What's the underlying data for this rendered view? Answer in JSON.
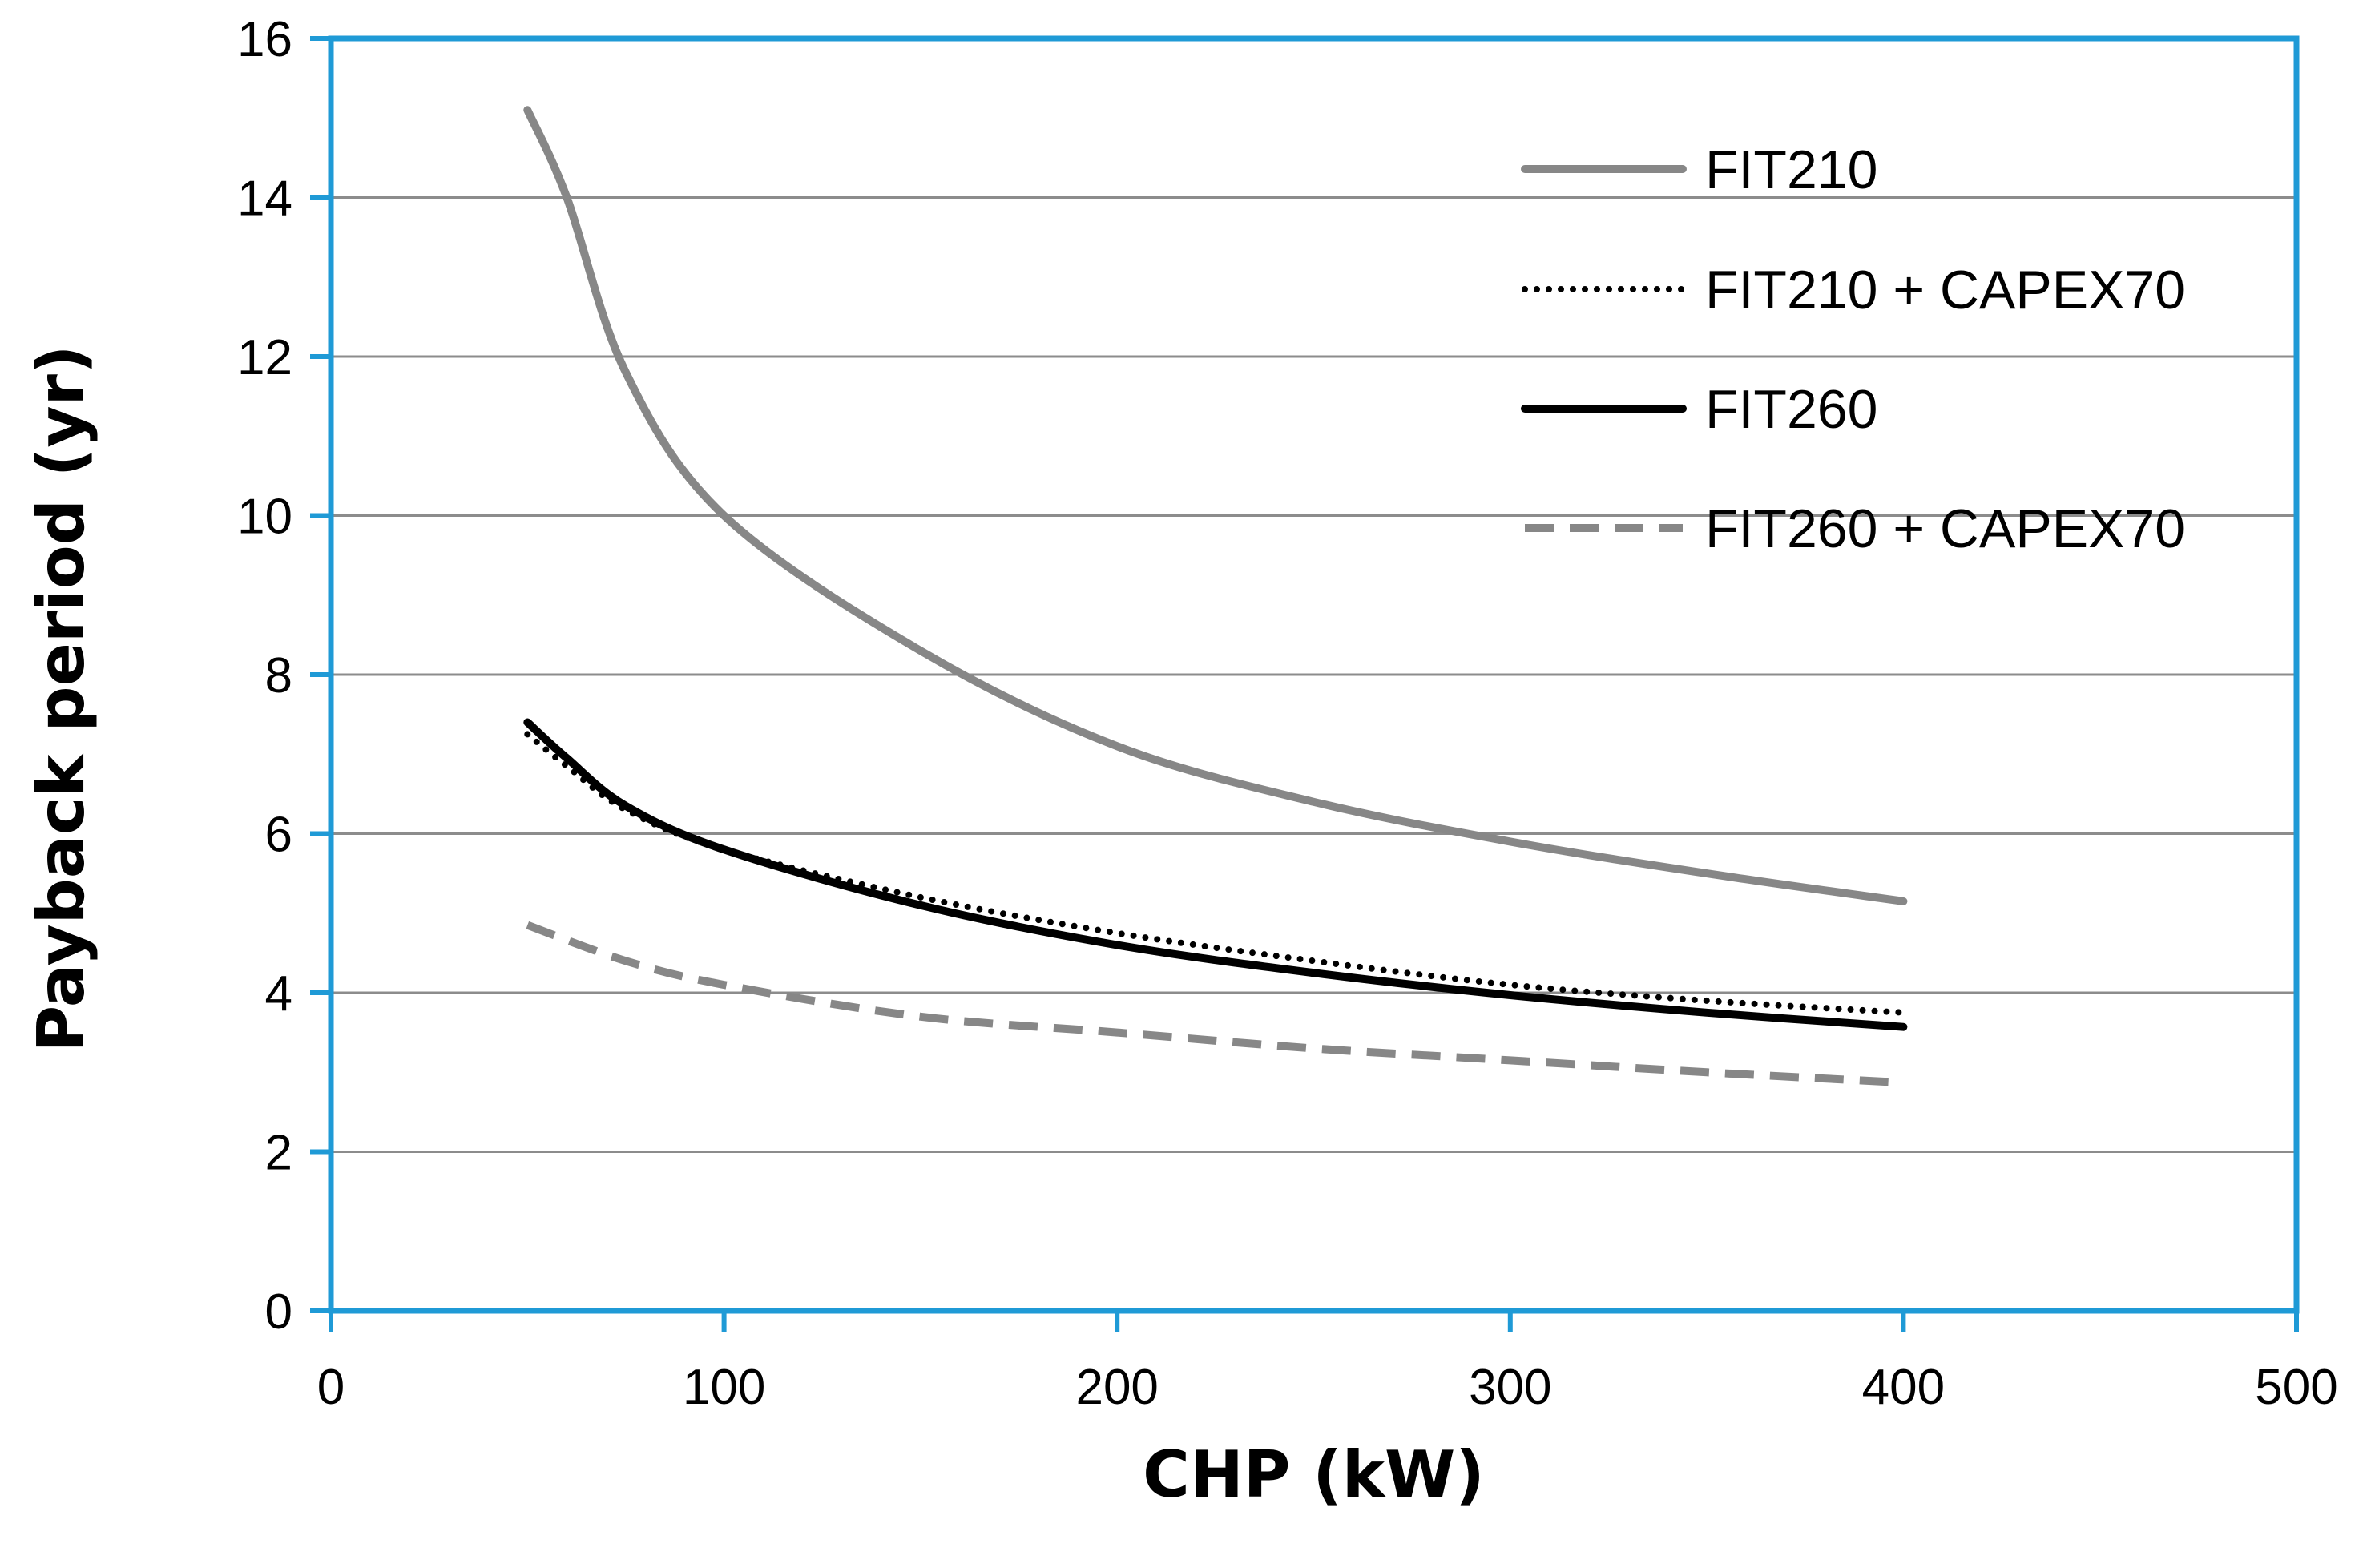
{
  "chart_data": {
    "type": "line",
    "title": "",
    "xlabel": "CHP (kW)",
    "ylabel": "Payback period (yr)",
    "xlim": [
      0,
      500
    ],
    "ylim": [
      0,
      16
    ],
    "xticks": [
      0,
      100,
      200,
      300,
      400,
      500
    ],
    "yticks": [
      0,
      2,
      4,
      6,
      8,
      10,
      12,
      14,
      16
    ],
    "grid": "horizontal",
    "legend_position": "top-right",
    "colors": {
      "frame": "#1f9ad6",
      "grid": "#8c8c8c",
      "gray_series": "#878787",
      "black_series": "#000000"
    },
    "series": [
      {
        "name": "FIT210",
        "style": "solid",
        "color": "#878787",
        "x": [
          50,
          60,
          75,
          100,
          150,
          200,
          250,
          300,
          350,
          400
        ],
        "y": [
          15.1,
          14.0,
          11.8,
          10.0,
          8.3,
          7.1,
          6.4,
          5.9,
          5.5,
          5.15
        ]
      },
      {
        "name": "FIT210 + CAPEX70",
        "style": "dotted",
        "color": "#000000",
        "x": [
          50,
          60,
          75,
          100,
          150,
          200,
          250,
          300,
          350,
          400
        ],
        "y": [
          7.25,
          6.85,
          6.3,
          5.8,
          5.2,
          4.75,
          4.4,
          4.1,
          3.9,
          3.75
        ]
      },
      {
        "name": "FIT260",
        "style": "solid",
        "color": "#000000",
        "x": [
          50,
          60,
          75,
          100,
          150,
          200,
          250,
          300,
          350,
          400
        ],
        "y": [
          7.4,
          6.95,
          6.35,
          5.8,
          5.1,
          4.6,
          4.25,
          3.97,
          3.75,
          3.57
        ]
      },
      {
        "name": "FIT260 + CAPEX70",
        "style": "dashed",
        "color": "#878787",
        "x": [
          50,
          75,
          100,
          150,
          200,
          250,
          300,
          350,
          400
        ],
        "y": [
          4.85,
          4.4,
          4.1,
          3.7,
          3.5,
          3.3,
          3.15,
          3.0,
          2.87
        ]
      }
    ]
  }
}
